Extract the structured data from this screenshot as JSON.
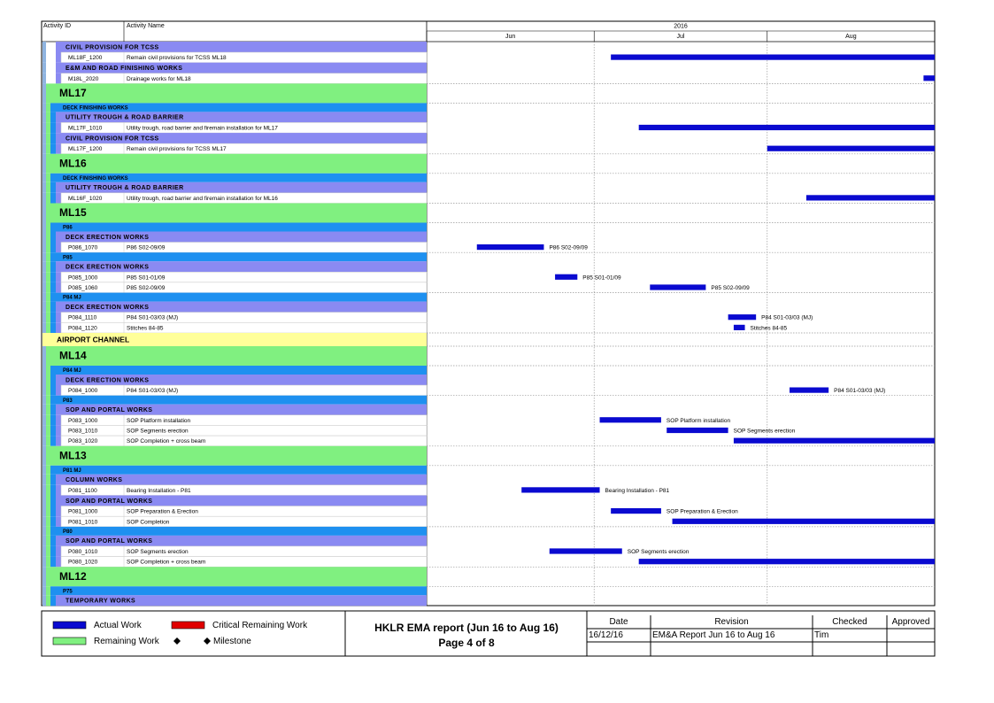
{
  "chart_data": {
    "type": "gantt",
    "columns": [
      "Activity ID",
      "Activity Name"
    ],
    "year": "2016",
    "xlim": [
      0,
      91
    ],
    "xticks": [
      {
        "value": 0,
        "label": "Jun"
      },
      {
        "value": 30,
        "label": "Jul"
      },
      {
        "value": 61,
        "label": "Aug"
      }
    ],
    "grid": true,
    "colors": {
      "group": "#80f080",
      "wbs": "#1e90f0",
      "sub": "#8a8af2",
      "band": "#ffff99",
      "bar": "#0a0ad0"
    },
    "rows": [
      {
        "kind": "sub",
        "name": "CIVIL PROVISION FOR TCSS"
      },
      {
        "kind": "act",
        "id": "ML18F_1200",
        "name": "Remain civil provisions for TCSS ML18",
        "start": 33,
        "end": 91
      },
      {
        "kind": "sub",
        "name": "E&M AND ROAD FINISHING WORKS"
      },
      {
        "kind": "act",
        "id": "M18L_2020",
        "name": "Drainage works for ML18",
        "start": 89,
        "end": 91
      },
      {
        "kind": "group",
        "name": "ML17"
      },
      {
        "kind": "wbs",
        "name": "DECK FINISHING WORKS"
      },
      {
        "kind": "sub",
        "name": "UTILITY TROUGH & ROAD BARRIER"
      },
      {
        "kind": "act",
        "id": "ML17F_1010",
        "name": "Utility trough, road barrier and firemain installation for ML17",
        "start": 38,
        "end": 91
      },
      {
        "kind": "sub",
        "name": "CIVIL PROVISION FOR TCSS"
      },
      {
        "kind": "act",
        "id": "ML17F_1200",
        "name": "Remain civil provisions for TCSS ML17",
        "start": 61,
        "end": 91
      },
      {
        "kind": "group",
        "name": "ML16"
      },
      {
        "kind": "wbs",
        "name": "DECK FINISHING WORKS"
      },
      {
        "kind": "sub",
        "name": "UTILITY TROUGH & ROAD BARRIER"
      },
      {
        "kind": "act",
        "id": "ML16F_1020",
        "name": "Utility trough, road barrier and firemain installation for ML16",
        "start": 68,
        "end": 91
      },
      {
        "kind": "group",
        "name": "ML15"
      },
      {
        "kind": "wbs",
        "name": "P86"
      },
      {
        "kind": "sub",
        "name": "DECK ERECTION WORKS"
      },
      {
        "kind": "act",
        "id": "P086_1070",
        "name": "P86 S02-09/09",
        "start": 9,
        "end": 21,
        "label_bar": true
      },
      {
        "kind": "wbs",
        "name": "P85"
      },
      {
        "kind": "sub",
        "name": "DECK ERECTION WORKS"
      },
      {
        "kind": "act",
        "id": "P085_1000",
        "name": "P85 S01-01/09",
        "start": 23,
        "end": 27,
        "label_bar": true
      },
      {
        "kind": "act",
        "id": "P085_1060",
        "name": "P85 S02-09/09",
        "start": 40,
        "end": 50,
        "label_bar": true
      },
      {
        "kind": "wbs",
        "name": "P84 MJ"
      },
      {
        "kind": "sub",
        "name": "DECK ERECTION WORKS"
      },
      {
        "kind": "act",
        "id": "P084_1110",
        "name": "P84 S01-03/03 (MJ)",
        "start": 54,
        "end": 59,
        "label_bar": true
      },
      {
        "kind": "act",
        "id": "P084_1120",
        "name": "Stitches 84-85",
        "start": 55,
        "end": 57,
        "label_bar": true
      },
      {
        "kind": "band",
        "name": "AIRPORT CHANNEL"
      },
      {
        "kind": "group",
        "name": "ML14"
      },
      {
        "kind": "wbs",
        "name": "P84 MJ"
      },
      {
        "kind": "sub",
        "name": "DECK ERECTION WORKS"
      },
      {
        "kind": "act",
        "id": "P084_1000",
        "name": "P84 S01-03/03 (MJ)",
        "start": 65,
        "end": 72,
        "label_bar": true
      },
      {
        "kind": "wbs",
        "name": "P83"
      },
      {
        "kind": "sub",
        "name": "SOP AND PORTAL WORKS"
      },
      {
        "kind": "act",
        "id": "P083_1000",
        "name": "SOP Platform installation",
        "start": 31,
        "end": 42,
        "label_bar": true
      },
      {
        "kind": "act",
        "id": "P083_1010",
        "name": "SOP Segments erection",
        "start": 43,
        "end": 54,
        "label_bar": true
      },
      {
        "kind": "act",
        "id": "P083_1020",
        "name": "SOP Completion + cross beam",
        "start": 55,
        "end": 91
      },
      {
        "kind": "group",
        "name": "ML13"
      },
      {
        "kind": "wbs",
        "name": "P81 MJ"
      },
      {
        "kind": "sub",
        "name": "COLUMN WORKS"
      },
      {
        "kind": "act",
        "id": "P081_1100",
        "name": "Bearing Installation - P81",
        "start": 17,
        "end": 31,
        "label_bar": true
      },
      {
        "kind": "sub",
        "name": "SOP AND PORTAL WORKS"
      },
      {
        "kind": "act",
        "id": "P081_1000",
        "name": "SOP Preparation & Erection",
        "start": 33,
        "end": 42,
        "label_bar": true
      },
      {
        "kind": "act",
        "id": "P081_1010",
        "name": "SOP Completion",
        "start": 44,
        "end": 91
      },
      {
        "kind": "wbs",
        "name": "P80"
      },
      {
        "kind": "sub",
        "name": "SOP AND PORTAL WORKS"
      },
      {
        "kind": "act",
        "id": "P080_1010",
        "name": "SOP Segments erection",
        "start": 22,
        "end": 35,
        "label_bar": true
      },
      {
        "kind": "act",
        "id": "P080_1020",
        "name": "SOP Completion + cross beam",
        "start": 38,
        "end": 91
      },
      {
        "kind": "group",
        "name": "ML12"
      },
      {
        "kind": "wbs",
        "name": "P75"
      },
      {
        "kind": "sub",
        "name": "TEMPORARY WORKS"
      }
    ]
  },
  "footer": {
    "legend": [
      {
        "name": "Actual Work",
        "color": "#0a0ad0"
      },
      {
        "name": "Critical Remaining Work",
        "color": "#e00000"
      },
      {
        "name": "Remaining Work",
        "color": "#80f080"
      },
      {
        "name": "Milestone"
      }
    ],
    "title": "HKLR EMA report (Jun 16 to Aug 16)",
    "page": "Page 4 of 8",
    "table": {
      "headers": [
        "Date",
        "Revision",
        "Checked",
        "Approved"
      ],
      "row": [
        "16/12/16",
        "EM&A Report Jun 16 to Aug 16",
        "Tim",
        ""
      ]
    }
  }
}
